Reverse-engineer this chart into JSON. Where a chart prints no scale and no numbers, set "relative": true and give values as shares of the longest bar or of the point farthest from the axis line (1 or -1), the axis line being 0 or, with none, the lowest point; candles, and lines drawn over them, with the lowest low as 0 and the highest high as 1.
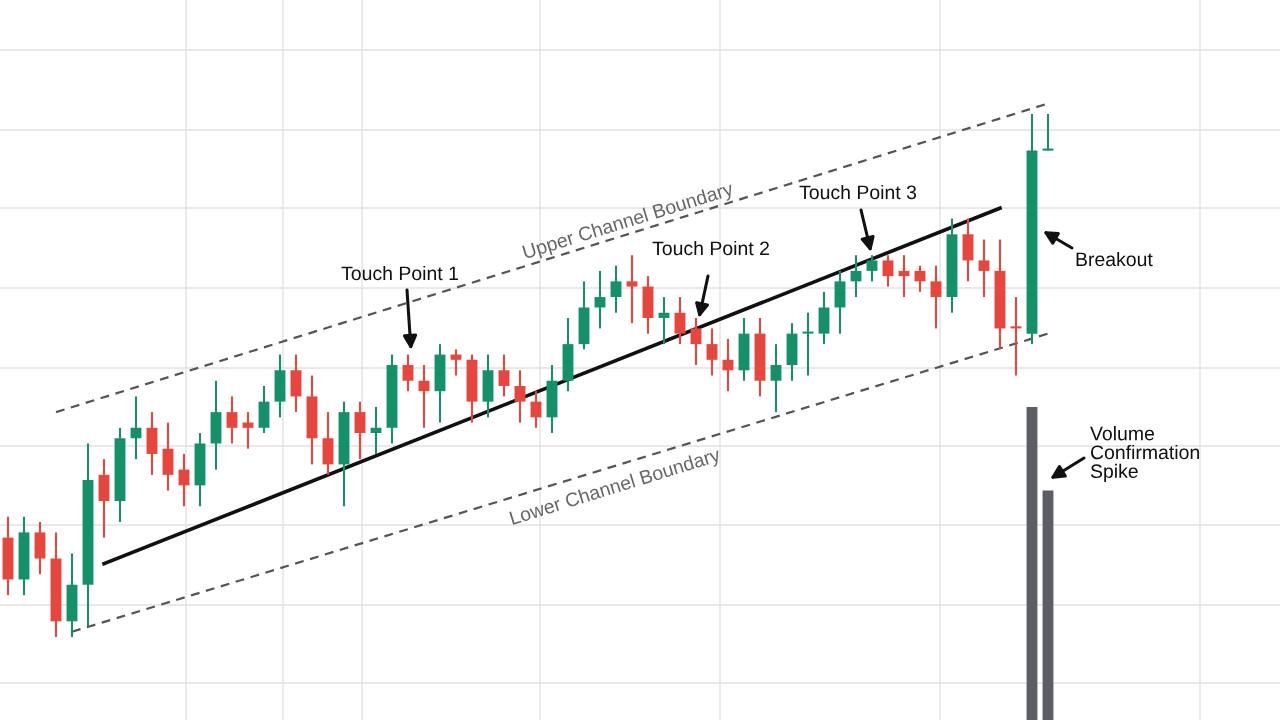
{
  "chart_data": {
    "type": "candlestick",
    "relative": true,
    "grid": true,
    "categories": [
      null,
      null,
      null,
      null,
      null,
      null,
      null,
      null,
      null,
      null,
      null,
      null,
      null,
      null,
      null,
      null,
      null,
      null,
      null,
      null,
      null,
      null,
      null,
      null,
      null,
      null,
      null,
      null,
      null,
      null,
      null,
      null,
      null,
      null,
      null,
      null,
      null,
      null,
      null,
      null,
      null,
      null,
      null,
      null,
      null,
      null,
      null,
      null,
      null,
      null,
      null,
      null,
      null,
      null,
      null,
      null,
      null,
      null,
      null,
      null,
      null,
      null,
      null,
      null,
      null,
      null
    ],
    "ohlc": [
      [
        0.19,
        0.23,
        0.08,
        0.11
      ],
      [
        0.11,
        0.23,
        0.08,
        0.2
      ],
      [
        0.2,
        0.22,
        0.12,
        0.15
      ],
      [
        0.15,
        0.2,
        0.0,
        0.03
      ],
      [
        0.03,
        0.16,
        0.0,
        0.1
      ],
      [
        0.1,
        0.37,
        0.02,
        0.3
      ],
      [
        0.31,
        0.34,
        0.19,
        0.26
      ],
      [
        0.26,
        0.4,
        0.22,
        0.38
      ],
      [
        0.38,
        0.46,
        0.34,
        0.4
      ],
      [
        0.4,
        0.43,
        0.31,
        0.35
      ],
      [
        0.36,
        0.41,
        0.28,
        0.31
      ],
      [
        0.32,
        0.35,
        0.25,
        0.29
      ],
      [
        0.29,
        0.39,
        0.25,
        0.37
      ],
      [
        0.37,
        0.49,
        0.32,
        0.43
      ],
      [
        0.43,
        0.46,
        0.37,
        0.4
      ],
      [
        0.41,
        0.43,
        0.36,
        0.4
      ],
      [
        0.4,
        0.48,
        0.39,
        0.45
      ],
      [
        0.45,
        0.54,
        0.42,
        0.51
      ],
      [
        0.51,
        0.54,
        0.43,
        0.46
      ],
      [
        0.46,
        0.5,
        0.33,
        0.38
      ],
      [
        0.38,
        0.43,
        0.31,
        0.33
      ],
      [
        0.33,
        0.45,
        0.25,
        0.43
      ],
      [
        0.43,
        0.45,
        0.34,
        0.39
      ],
      [
        0.39,
        0.44,
        0.35,
        0.4
      ],
      [
        0.4,
        0.54,
        0.37,
        0.52
      ],
      [
        0.52,
        0.54,
        0.47,
        0.49
      ],
      [
        0.49,
        0.52,
        0.4,
        0.47
      ],
      [
        0.47,
        0.56,
        0.41,
        0.54
      ],
      [
        0.54,
        0.55,
        0.5,
        0.53
      ],
      [
        0.53,
        0.54,
        0.41,
        0.45
      ],
      [
        0.45,
        0.54,
        0.42,
        0.51
      ],
      [
        0.51,
        0.54,
        0.46,
        0.48
      ],
      [
        0.48,
        0.51,
        0.41,
        0.45
      ],
      [
        0.45,
        0.47,
        0.4,
        0.42
      ],
      [
        0.42,
        0.52,
        0.39,
        0.49
      ],
      [
        0.49,
        0.61,
        0.47,
        0.56
      ],
      [
        0.56,
        0.68,
        0.55,
        0.63
      ],
      [
        0.63,
        0.7,
        0.59,
        0.65
      ],
      [
        0.65,
        0.71,
        0.62,
        0.68
      ],
      [
        0.68,
        0.73,
        0.6,
        0.67
      ],
      [
        0.67,
        0.69,
        0.58,
        0.61
      ],
      [
        0.61,
        0.65,
        0.56,
        0.62
      ],
      [
        0.62,
        0.65,
        0.56,
        0.58
      ],
      [
        0.59,
        0.61,
        0.52,
        0.56
      ],
      [
        0.56,
        0.59,
        0.5,
        0.53
      ],
      [
        0.53,
        0.57,
        0.47,
        0.51
      ],
      [
        0.51,
        0.61,
        0.49,
        0.58
      ],
      [
        0.58,
        0.61,
        0.46,
        0.49
      ],
      [
        0.49,
        0.56,
        0.43,
        0.52
      ],
      [
        0.52,
        0.6,
        0.49,
        0.58
      ],
      [
        0.58,
        0.62,
        0.5,
        0.58
      ],
      [
        0.58,
        0.66,
        0.56,
        0.63
      ],
      [
        0.63,
        0.7,
        0.58,
        0.68
      ],
      [
        0.68,
        0.73,
        0.65,
        0.7
      ],
      [
        0.7,
        0.73,
        0.68,
        0.72
      ],
      [
        0.72,
        0.73,
        0.67,
        0.69
      ],
      [
        0.7,
        0.73,
        0.65,
        0.69
      ],
      [
        0.7,
        0.71,
        0.66,
        0.68
      ],
      [
        0.68,
        0.71,
        0.59,
        0.65
      ],
      [
        0.65,
        0.8,
        0.62,
        0.77
      ],
      [
        0.77,
        0.8,
        0.68,
        0.72
      ],
      [
        0.72,
        0.76,
        0.65,
        0.7
      ],
      [
        0.7,
        0.76,
        0.55,
        0.59
      ],
      [
        0.59,
        0.65,
        0.5,
        0.59
      ],
      [
        0.58,
        1.0,
        0.56,
        0.93
      ],
      [
        0.93,
        1.0,
        0.93,
        0.93
      ]
    ],
    "colors": [
      "#e8453c",
      "#16906a",
      "#e8453c",
      "#e8453c",
      "#16906a",
      "#16906a",
      "#e8453c",
      "#16906a",
      "#16906a",
      "#e8453c",
      "#e8453c",
      "#e8453c",
      "#16906a",
      "#16906a",
      "#e8453c",
      "#e8453c",
      "#16906a",
      "#16906a",
      "#e8453c",
      "#e8453c",
      "#e8453c",
      "#16906a",
      "#e8453c",
      "#16906a",
      "#16906a",
      "#e8453c",
      "#e8453c",
      "#16906a",
      "#e8453c",
      "#e8453c",
      "#16906a",
      "#e8453c",
      "#e8453c",
      "#e8453c",
      "#16906a",
      "#16906a",
      "#16906a",
      "#16906a",
      "#16906a",
      "#e8453c",
      "#e8453c",
      "#16906a",
      "#e8453c",
      "#e8453c",
      "#e8453c",
      "#e8453c",
      "#16906a",
      "#e8453c",
      "#16906a",
      "#16906a",
      "#16906a",
      "#16906a",
      "#16906a",
      "#16906a",
      "#16906a",
      "#e8453c",
      "#e8453c",
      "#e8453c",
      "#e8453c",
      "#16906a",
      "#e8453c",
      "#e8453c",
      "#e8453c",
      "#e8453c",
      "#16906a",
      "#16906a"
    ],
    "series": [
      {
        "type": "bar",
        "color": "#5b5e62",
        "values": [
          null,
          null,
          null,
          null,
          null,
          null,
          null,
          null,
          null,
          null,
          null,
          null,
          null,
          null,
          null,
          null,
          null,
          null,
          null,
          null,
          null,
          null,
          null,
          null,
          null,
          null,
          null,
          null,
          null,
          null,
          null,
          null,
          null,
          null,
          null,
          null,
          null,
          null,
          null,
          null,
          null,
          null,
          null,
          null,
          null,
          null,
          null,
          null,
          null,
          null,
          null,
          null,
          null,
          null,
          null,
          null,
          null,
          null,
          null,
          null,
          null,
          null,
          null,
          null,
          0.6,
          0.44
        ],
        "base": [
          null,
          null,
          null,
          null,
          null,
          null,
          null,
          null,
          null,
          null,
          null,
          null,
          null,
          null,
          null,
          null,
          null,
          null,
          null,
          null,
          null,
          null,
          null,
          null,
          null,
          null,
          null,
          null,
          null,
          null,
          null,
          null,
          null,
          null,
          null,
          null,
          null,
          null,
          null,
          null,
          null,
          null,
          null,
          null,
          null,
          null,
          null,
          null,
          null,
          null,
          null,
          null,
          null,
          null,
          null,
          null,
          null,
          null,
          null,
          null,
          null,
          null,
          null,
          null,
          -0.16,
          -0.16
        ]
      },
      {
        "type": "line",
        "color": "#555555",
        "line_style": "dashed",
        "values": [
          null,
          null,
          null,
          0.43,
          null,
          null,
          null,
          null,
          null,
          null,
          null,
          null,
          null,
          null,
          null,
          null,
          null,
          null,
          null,
          null,
          null,
          null,
          null,
          null,
          null,
          null,
          null,
          null,
          null,
          null,
          null,
          null,
          null,
          null,
          null,
          null,
          null,
          null,
          null,
          null,
          null,
          null,
          null,
          null,
          null,
          null,
          null,
          null,
          null,
          null,
          null,
          null,
          null,
          null,
          null,
          null,
          null,
          null,
          null,
          null,
          null,
          null,
          null,
          null,
          null,
          1.02
        ]
      },
      {
        "type": "line",
        "color": "#555555",
        "line_style": "dashed",
        "values": [
          null,
          null,
          null,
          null,
          0.01,
          null,
          null,
          null,
          null,
          null,
          null,
          null,
          null,
          null,
          null,
          null,
          null,
          null,
          null,
          null,
          null,
          null,
          null,
          null,
          null,
          null,
          null,
          null,
          null,
          null,
          null,
          null,
          null,
          null,
          null,
          null,
          null,
          null,
          null,
          null,
          null,
          null,
          null,
          null,
          null,
          null,
          null,
          null,
          null,
          null,
          null,
          null,
          null,
          null,
          null,
          null,
          null,
          null,
          null,
          null,
          null,
          null,
          null,
          null,
          null,
          0.58
        ]
      },
      {
        "type": "line",
        "color": "#111111",
        "line_style": "solid",
        "values": [
          null,
          null,
          null,
          null,
          null,
          null,
          0.14,
          null,
          null,
          null,
          null,
          null,
          null,
          null,
          null,
          null,
          null,
          null,
          null,
          null,
          null,
          null,
          null,
          null,
          null,
          null,
          null,
          null,
          null,
          null,
          null,
          null,
          null,
          null,
          null,
          null,
          null,
          null,
          null,
          null,
          null,
          null,
          null,
          null,
          null,
          null,
          null,
          null,
          null,
          null,
          null,
          null,
          null,
          null,
          null,
          null,
          null,
          null,
          null,
          null,
          null,
          null,
          0.82,
          null,
          null,
          null
        ]
      }
    ],
    "annotations": [
      "Upper Channel Boundary",
      "Lower Channel Boundary",
      "Touch Point 1",
      "Touch Point 2",
      "Touch Point 3",
      "Breakout",
      "Volume Confirmation Spike"
    ]
  }
}
